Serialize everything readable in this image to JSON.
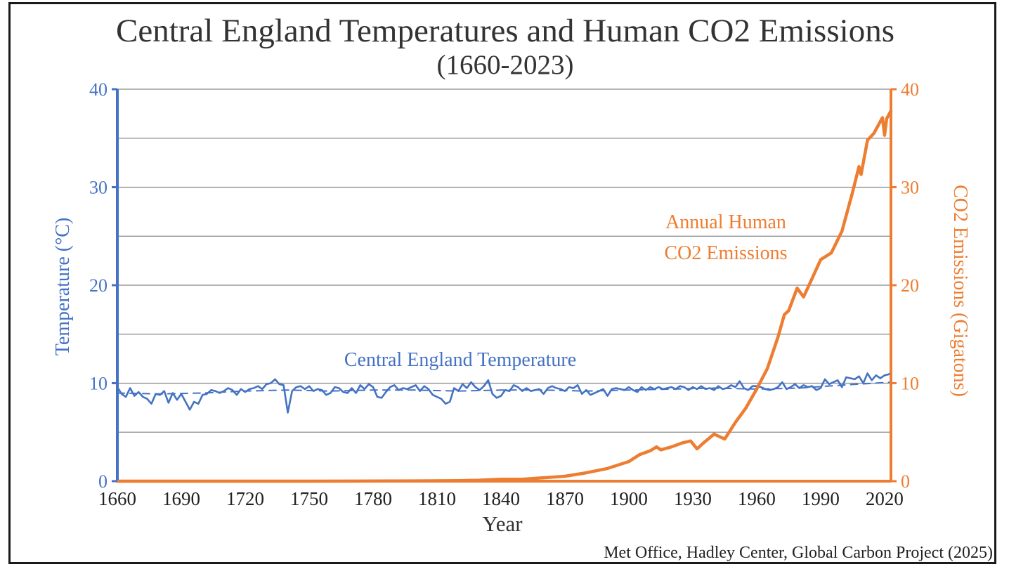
{
  "colors": {
    "temperature": "#4472c4",
    "co2": "#ed7d31",
    "grid": "#888888",
    "text": "#333333"
  },
  "chart_data": {
    "type": "line",
    "title": "Central England Temperatures and Human CO2 Emissions",
    "subtitle": "(1660-2023)",
    "xlabel": "Year",
    "ylabel_left": "Temperature (°C)",
    "ylabel_right": "CO2 Emissions (Gigatons)",
    "source": "Met Office, Hadley Center, Global Carbon Project (2025)",
    "xlim": [
      1660,
      2023
    ],
    "ylim_left": [
      0,
      40
    ],
    "ylim_right": [
      0,
      40
    ],
    "x_ticks": [
      "1660",
      "1690",
      "1720",
      "1750",
      "1780",
      "1810",
      "1840",
      "1870",
      "1900",
      "1930",
      "1960",
      "1990",
      "2020"
    ],
    "y_ticks_left": [
      "0",
      "10",
      "20",
      "30",
      "40"
    ],
    "y_ticks_right": [
      "0",
      "10",
      "20",
      "30",
      "40"
    ],
    "grid": true,
    "annotations": {
      "temperature_label": "Central England Temperature",
      "co2_label_line1": "Annual Human",
      "co2_label_line2": "CO2 Emissions"
    },
    "series": [
      {
        "axis": "left",
        "x": [
          1660,
          1662,
          1664,
          1666,
          1668,
          1670,
          1672,
          1674,
          1676,
          1678,
          1680,
          1682,
          1684,
          1686,
          1688,
          1690,
          1692,
          1694,
          1696,
          1698,
          1700,
          1702,
          1704,
          1706,
          1708,
          1710,
          1712,
          1714,
          1716,
          1718,
          1720,
          1722,
          1724,
          1726,
          1728,
          1730,
          1732,
          1734,
          1736,
          1738,
          1740,
          1742,
          1744,
          1746,
          1748,
          1750,
          1752,
          1754,
          1756,
          1758,
          1760,
          1762,
          1764,
          1766,
          1768,
          1770,
          1772,
          1774,
          1776,
          1778,
          1780,
          1782,
          1784,
          1786,
          1788,
          1790,
          1792,
          1794,
          1796,
          1798,
          1800,
          1802,
          1804,
          1806,
          1808,
          1810,
          1812,
          1814,
          1816,
          1818,
          1820,
          1822,
          1824,
          1826,
          1828,
          1830,
          1832,
          1834,
          1836,
          1838,
          1840,
          1842,
          1844,
          1846,
          1848,
          1850,
          1852,
          1854,
          1856,
          1858,
          1860,
          1862,
          1864,
          1866,
          1868,
          1870,
          1872,
          1874,
          1876,
          1878,
          1880,
          1882,
          1884,
          1886,
          1888,
          1890,
          1892,
          1894,
          1896,
          1898,
          1900,
          1902,
          1904,
          1906,
          1908,
          1910,
          1912,
          1914,
          1916,
          1918,
          1920,
          1922,
          1924,
          1926,
          1928,
          1930,
          1932,
          1934,
          1936,
          1938,
          1940,
          1942,
          1944,
          1946,
          1948,
          1950,
          1952,
          1954,
          1956,
          1958,
          1960,
          1962,
          1964,
          1966,
          1968,
          1970,
          1972,
          1974,
          1976,
          1978,
          1980,
          1982,
          1984,
          1986,
          1988,
          1990,
          1992,
          1994,
          1996,
          1998,
          2000,
          2002,
          2004,
          2006,
          2008,
          2010,
          2012,
          2014,
          2016,
          2018,
          2020,
          2022,
          2023
        ],
        "values": [
          9.6,
          8.9,
          8.6,
          9.5,
          8.7,
          9.1,
          8.6,
          8.4,
          7.9,
          8.9,
          8.8,
          9.2,
          8.0,
          9.0,
          8.3,
          8.9,
          8.1,
          7.3,
          8.1,
          7.9,
          8.8,
          8.9,
          9.3,
          9.2,
          9.0,
          9.2,
          9.5,
          9.3,
          8.8,
          9.4,
          9.1,
          9.4,
          9.5,
          9.7,
          9.4,
          9.9,
          10.0,
          10.4,
          9.9,
          9.8,
          7.0,
          9.2,
          9.6,
          9.7,
          9.4,
          9.7,
          9.2,
          9.4,
          9.3,
          8.8,
          9.0,
          9.6,
          9.5,
          9.1,
          9.0,
          9.5,
          9.0,
          9.8,
          9.4,
          9.9,
          9.6,
          8.6,
          8.5,
          9.1,
          9.6,
          9.8,
          9.3,
          9.5,
          9.4,
          9.6,
          9.8,
          9.2,
          9.7,
          9.4,
          8.8,
          8.6,
          8.4,
          7.9,
          8.1,
          9.5,
          9.2,
          9.9,
          9.5,
          10.1,
          9.6,
          9.3,
          9.7,
          10.3,
          8.9,
          8.5,
          8.7,
          9.3,
          9.2,
          9.8,
          9.6,
          9.2,
          9.5,
          9.2,
          9.3,
          9.4,
          8.9,
          9.5,
          9.7,
          9.5,
          9.4,
          9.2,
          9.6,
          9.5,
          9.8,
          8.9,
          9.3,
          8.8,
          9.0,
          9.2,
          9.4,
          8.7,
          9.4,
          9.5,
          9.4,
          9.3,
          9.6,
          9.3,
          9.1,
          9.6,
          9.3,
          9.6,
          9.4,
          9.6,
          9.4,
          9.5,
          9.6,
          9.4,
          9.7,
          9.6,
          9.3,
          9.6,
          9.4,
          9.7,
          9.4,
          9.5,
          9.3,
          9.7,
          9.4,
          9.5,
          9.8,
          9.6,
          10.2,
          9.5,
          9.3,
          9.7,
          9.7,
          9.6,
          9.4,
          9.3,
          9.4,
          9.6,
          10.1,
          9.4,
          9.6,
          9.9,
          9.5,
          9.8,
          9.6,
          9.7,
          9.3,
          9.5,
          10.4,
          9.9,
          10.1,
          10.3,
          9.6,
          10.6,
          10.5,
          10.4,
          10.7,
          10.0,
          11.0,
          10.3,
          10.8,
          10.5,
          10.8,
          10.9,
          11.1
        ]
      },
      {
        "axis": "left",
        "style": "dashed",
        "x": [
          1660,
          1680,
          1700,
          1720,
          1740,
          1760,
          1780,
          1800,
          1820,
          1840,
          1860,
          1880,
          1900,
          1920,
          1940,
          1960,
          1980,
          2000,
          2023
        ],
        "values": [
          9.0,
          8.9,
          9.0,
          9.2,
          9.3,
          9.2,
          9.3,
          9.3,
          9.2,
          9.3,
          9.3,
          9.2,
          9.3,
          9.4,
          9.5,
          9.4,
          9.5,
          9.8,
          10.1
        ]
      },
      {
        "axis": "right",
        "x": [
          1660,
          1750,
          1800,
          1820,
          1830,
          1840,
          1850,
          1860,
          1870,
          1880,
          1890,
          1900,
          1905,
          1910,
          1913,
          1915,
          1920,
          1925,
          1929,
          1932,
          1935,
          1940,
          1945,
          1950,
          1955,
          1960,
          1965,
          1970,
          1973,
          1975,
          1979,
          1982,
          1985,
          1990,
          1995,
          2000,
          2005,
          2008,
          2009,
          2012,
          2015,
          2019,
          2020,
          2021,
          2023
        ],
        "values": [
          0,
          0,
          0.03,
          0.05,
          0.1,
          0.2,
          0.2,
          0.35,
          0.5,
          0.85,
          1.3,
          2.0,
          2.7,
          3.1,
          3.5,
          3.2,
          3.5,
          3.9,
          4.1,
          3.3,
          3.9,
          4.8,
          4.3,
          6.0,
          7.5,
          9.4,
          11.5,
          14.7,
          17.0,
          17.4,
          19.7,
          18.8,
          20.2,
          22.6,
          23.3,
          25.5,
          29.5,
          32.1,
          31.3,
          34.8,
          35.5,
          37.1,
          35.3,
          37.0,
          37.8
        ]
      }
    ]
  }
}
